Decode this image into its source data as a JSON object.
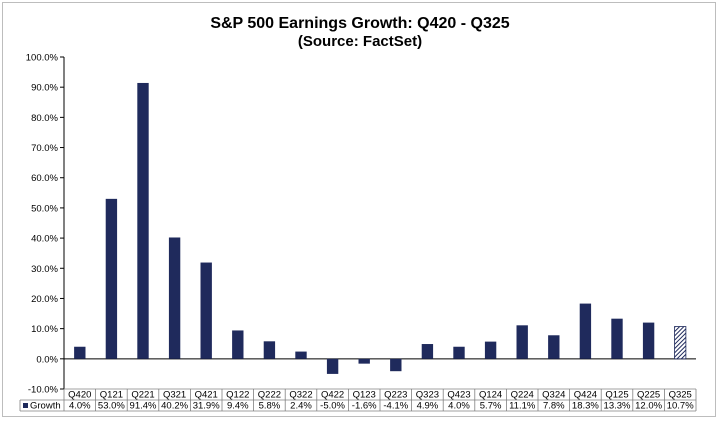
{
  "chart_data": {
    "type": "bar",
    "title": "S&P 500 Earnings Growth:  Q420 - Q325",
    "subtitle": "(Source: FactSet)",
    "categories": [
      "Q420",
      "Q121",
      "Q221",
      "Q321",
      "Q421",
      "Q122",
      "Q222",
      "Q322",
      "Q422",
      "Q123",
      "Q223",
      "Q323",
      "Q423",
      "Q124",
      "Q224",
      "Q324",
      "Q424",
      "Q125",
      "Q225",
      "Q325"
    ],
    "series": [
      {
        "name": "Growth",
        "values": [
          4.0,
          53.0,
          91.4,
          40.2,
          31.9,
          9.4,
          5.8,
          2.4,
          -5.0,
          -1.6,
          -4.1,
          4.9,
          4.0,
          5.7,
          11.1,
          7.8,
          18.3,
          13.3,
          12.0,
          10.7
        ],
        "labels": [
          "4.0%",
          "53.0%",
          "91.4%",
          "40.2%",
          "31.9%",
          "9.4%",
          "5.8%",
          "2.4%",
          "-5.0%",
          "-1.6%",
          "-4.1%",
          "4.9%",
          "4.0%",
          "5.7%",
          "11.1%",
          "7.8%",
          "18.3%",
          "13.3%",
          "12.0%",
          "10.7%"
        ]
      }
    ],
    "hatched_last_bar": true,
    "ylim": [
      -10,
      100
    ],
    "yticks": [
      -10,
      0,
      10,
      20,
      30,
      40,
      50,
      60,
      70,
      80,
      90,
      100
    ],
    "ytick_labels": [
      "-10.0%",
      "0.0%",
      "10.0%",
      "20.0%",
      "30.0%",
      "40.0%",
      "50.0%",
      "60.0%",
      "70.0%",
      "80.0%",
      "90.0%",
      "100.0%"
    ],
    "grid": false,
    "data_table": true,
    "legend_label": "Growth",
    "colors": {
      "bar": "#1f2a5c",
      "axis": "#000000",
      "table_border": "#808080"
    }
  }
}
